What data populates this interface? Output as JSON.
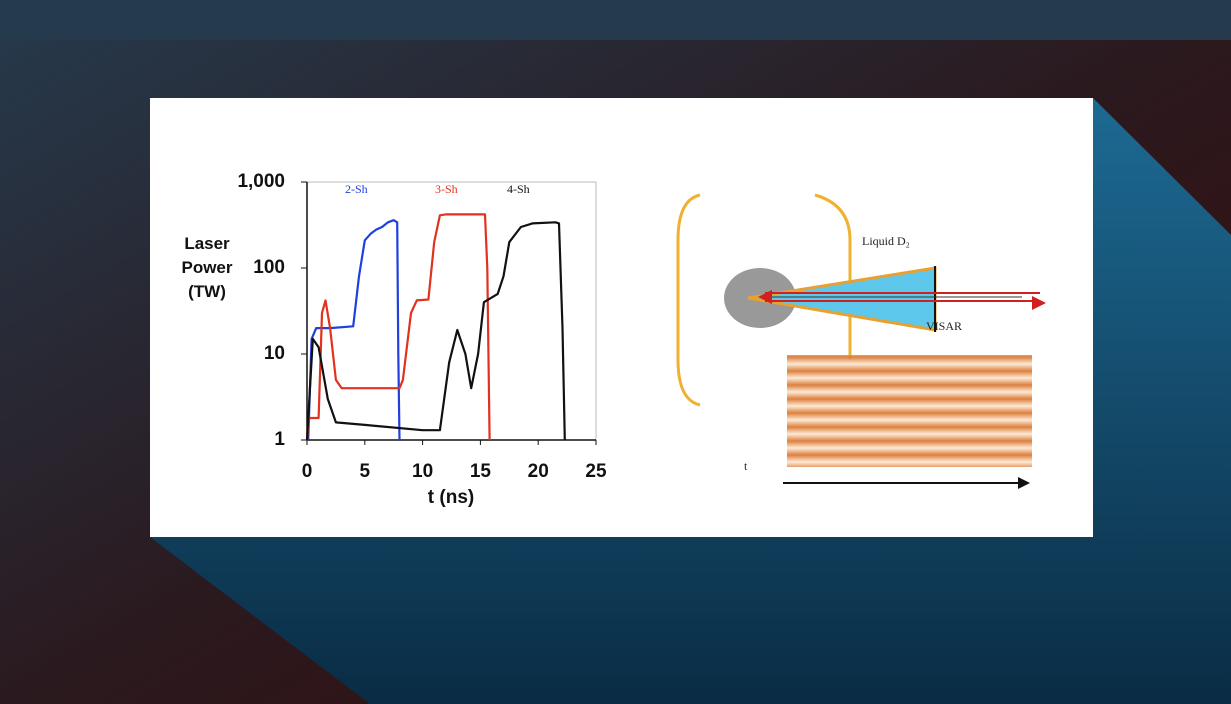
{
  "chart_data": {
    "type": "line",
    "yscale": "log",
    "y_label": "Laser Power (TW)",
    "x_label": "t (ns)",
    "xlim": [
      0,
      25
    ],
    "xticks": [
      0,
      5,
      10,
      15,
      20,
      25
    ],
    "ylim": [
      1,
      1000
    ],
    "yticks": [
      1,
      10,
      100,
      {
        "value": 1000,
        "label": "1,000"
      }
    ],
    "series": [
      {
        "name": "2-Sh",
        "color": "#1f3fe0",
        "x": [
          0.1,
          0.4,
          0.8,
          2,
          4,
          4.5,
          5,
          5.5,
          6,
          6.5,
          7,
          7.5,
          7.8,
          7.9,
          8.0
        ],
        "values": [
          1,
          15,
          20,
          20,
          21,
          80,
          210,
          250,
          280,
          300,
          340,
          360,
          340,
          10,
          1
        ]
      },
      {
        "name": "3-Sh",
        "color": "#e0321e",
        "x": [
          0,
          0.2,
          1,
          1.3,
          1.6,
          2,
          2.5,
          3,
          5,
          8,
          8.3,
          9,
          9.5,
          10.5,
          11,
          11.5,
          12,
          15.4,
          15.6,
          15.8
        ],
        "values": [
          1,
          1.8,
          1.8,
          30,
          42,
          20,
          5,
          4,
          4,
          4,
          5,
          30,
          42,
          43,
          200,
          410,
          420,
          420,
          100,
          1
        ]
      },
      {
        "name": "4-Sh",
        "color": "#111111",
        "x": [
          0,
          0.5,
          1,
          1.8,
          2.5,
          5,
          10,
          11.5,
          12.3,
          13,
          13.7,
          14.2,
          14.8,
          15.3,
          16.5,
          17,
          17.5,
          18.5,
          19.5,
          21.5,
          21.8,
          22.1,
          22.3
        ],
        "values": [
          1,
          15,
          12,
          3,
          1.6,
          1.5,
          1.3,
          1.3,
          8,
          19,
          10,
          4,
          10,
          40,
          50,
          80,
          200,
          300,
          330,
          340,
          330,
          20,
          1
        ]
      }
    ]
  },
  "diagram": {
    "target_label": "Liquid D₂",
    "probe_label": "VISAR",
    "time_label": "t"
  }
}
